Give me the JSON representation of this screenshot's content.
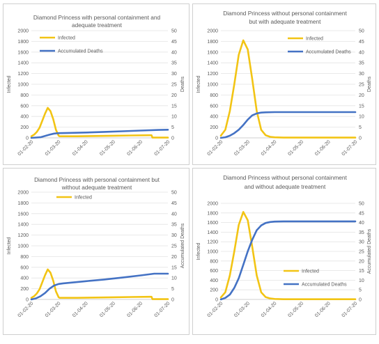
{
  "chart_data": [
    {
      "type": "line",
      "title": [
        "Diamond Princess with personal containment and",
        "adequate treatment"
      ],
      "ylabel": "Infected",
      "y2label": "Deaths",
      "x_ticks": [
        "01-02-20",
        "01-03-20",
        "01-04-20",
        "01-05-20",
        "01-06-20",
        "01-07-20"
      ],
      "ylim": [
        0,
        2000
      ],
      "y2lim": [
        0,
        50
      ],
      "y_ticks": [
        0,
        200,
        400,
        600,
        800,
        1000,
        1200,
        1400,
        1600,
        1800,
        2000
      ],
      "y2_ticks": [
        0,
        5,
        10,
        15,
        20,
        25,
        30,
        35,
        40,
        45,
        50
      ],
      "grid": true,
      "legend_position": "top-left",
      "series": [
        {
          "name": "Infected",
          "axis": "left",
          "color": "#f2c414",
          "x": [
            0,
            3,
            6,
            9,
            12,
            15,
            18,
            21,
            24,
            27,
            30,
            31,
            50,
            70,
            90,
            110,
            130,
            132,
            133,
            140,
            150
          ],
          "y": [
            30,
            60,
            110,
            190,
            320,
            450,
            560,
            500,
            350,
            150,
            40,
            30,
            30,
            35,
            40,
            45,
            50,
            50,
            5,
            5,
            5
          ]
        },
        {
          "name": "Accumulated Deaths",
          "axis": "right",
          "color": "#4472c4",
          "x": [
            0,
            10,
            20,
            25,
            30,
            40,
            60,
            80,
            100,
            120,
            140,
            150
          ],
          "y": [
            0,
            0.3,
            1.5,
            2.0,
            2.2,
            2.3,
            2.5,
            2.8,
            3.1,
            3.4,
            3.7,
            3.8
          ]
        }
      ]
    },
    {
      "type": "line",
      "title": [
        "Diamond Princess without personal containment",
        "but with adequate treatment"
      ],
      "ylabel": "Infected",
      "y2label": "Deaths",
      "x_ticks": [
        "01-02-20",
        "01-03-20",
        "01-04-20",
        "01-05-20",
        "01-06-20",
        "01-07-20"
      ],
      "ylim": [
        0,
        2000
      ],
      "y2lim": [
        0,
        50
      ],
      "y_ticks": [
        0,
        200,
        400,
        600,
        800,
        1000,
        1200,
        1400,
        1600,
        1800,
        2000
      ],
      "y2_ticks": [
        0,
        5,
        10,
        15,
        20,
        25,
        30,
        35,
        40,
        45,
        50
      ],
      "grid": true,
      "legend_position": "top-right",
      "series": [
        {
          "name": "Infected",
          "axis": "left",
          "color": "#f2c414",
          "x": [
            0,
            5,
            10,
            15,
            20,
            25,
            30,
            35,
            40,
            45,
            50,
            55,
            60,
            70,
            80,
            150
          ],
          "y": [
            40,
            150,
            500,
            1000,
            1550,
            1820,
            1650,
            1100,
            500,
            150,
            50,
            20,
            10,
            5,
            5,
            5
          ]
        },
        {
          "name": "Accumulated Deaths",
          "axis": "right",
          "color": "#4472c4",
          "x": [
            0,
            5,
            10,
            15,
            20,
            25,
            30,
            35,
            40,
            45,
            50,
            60,
            70,
            80,
            100,
            150
          ],
          "y": [
            0,
            0.3,
            1.0,
            2.2,
            3.8,
            6.0,
            8.5,
            10.5,
            11.4,
            11.8,
            11.9,
            12.0,
            12.0,
            12.0,
            12.0,
            12.0
          ]
        }
      ]
    },
    {
      "type": "line",
      "title": [
        "Diamond Princess with personal containment but",
        "without adequate treatment"
      ],
      "ylabel": "Infected",
      "y2label": "Accumulated Deaths",
      "x_ticks": [
        "01-02-20",
        "01-03-20",
        "01-04-20",
        "01-05-20",
        "01-06-20",
        "01-07-20"
      ],
      "ylim": [
        0,
        2000
      ],
      "y2lim": [
        0,
        50
      ],
      "y_ticks": [
        0,
        200,
        400,
        600,
        800,
        1000,
        1200,
        1400,
        1600,
        1800,
        2000
      ],
      "y2_ticks": [
        0,
        5,
        10,
        15,
        20,
        25,
        30,
        35,
        40,
        45,
        50
      ],
      "grid": true,
      "legend_position": "top-left",
      "series": [
        {
          "name": "Infected",
          "axis": "left",
          "color": "#f2c414",
          "x": [
            0,
            3,
            6,
            9,
            12,
            15,
            18,
            21,
            24,
            27,
            30,
            31,
            50,
            70,
            90,
            110,
            130,
            132,
            133,
            140,
            150
          ],
          "y": [
            30,
            60,
            110,
            190,
            320,
            450,
            560,
            500,
            350,
            150,
            40,
            30,
            30,
            35,
            40,
            45,
            50,
            50,
            5,
            5,
            5
          ]
        },
        {
          "name": "",
          "axis": "right",
          "color": "#4472c4",
          "x": [
            0,
            5,
            10,
            15,
            20,
            25,
            30,
            35,
            40,
            60,
            80,
            100,
            120,
            135,
            140,
            150
          ],
          "y": [
            0,
            0.5,
            1.5,
            3.0,
            5.0,
            6.5,
            7.2,
            7.5,
            7.7,
            8.5,
            9.3,
            10.2,
            11.2,
            12.0,
            12.0,
            12.0
          ]
        }
      ]
    },
    {
      "type": "line",
      "title": [
        "Diamond Princess without personal containment",
        "and without adequate treatment"
      ],
      "ylabel": "Infected",
      "y2label": "Accumulated Deaths",
      "x_ticks": [
        "01-02-20",
        "01-03-20",
        "01-04-20",
        "01-05-20",
        "01-06-20",
        "01-07-20"
      ],
      "ylim": [
        0,
        2000
      ],
      "y2lim": [
        0,
        50
      ],
      "y_ticks": [
        0,
        200,
        400,
        600,
        800,
        1000,
        1200,
        1400,
        1600,
        1800,
        2000
      ],
      "y2_ticks": [
        0,
        5,
        10,
        15,
        20,
        25,
        30,
        35,
        40,
        45,
        50
      ],
      "grid": true,
      "legend_position": "bottom-right",
      "series": [
        {
          "name": "Infected",
          "axis": "left",
          "color": "#f2c414",
          "x": [
            0,
            5,
            10,
            15,
            20,
            25,
            30,
            35,
            40,
            45,
            50,
            55,
            60,
            70,
            80,
            150
          ],
          "y": [
            40,
            150,
            500,
            1000,
            1550,
            1820,
            1650,
            1100,
            500,
            150,
            50,
            20,
            10,
            5,
            5,
            5
          ]
        },
        {
          "name": "Accumulated Deaths",
          "axis": "right",
          "color": "#4472c4",
          "x": [
            0,
            5,
            10,
            15,
            20,
            25,
            30,
            35,
            40,
            45,
            50,
            55,
            60,
            70,
            80,
            100,
            150
          ],
          "y": [
            0,
            0.8,
            2.5,
            6,
            11,
            18,
            25,
            31,
            36,
            38.5,
            39.8,
            40.3,
            40.5,
            40.6,
            40.6,
            40.6,
            40.6
          ]
        }
      ]
    }
  ]
}
